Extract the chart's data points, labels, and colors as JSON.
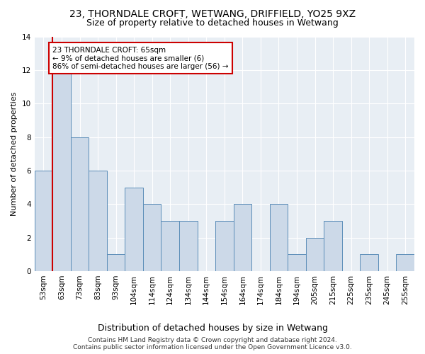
{
  "title": "23, THORNDALE CROFT, WETWANG, DRIFFIELD, YO25 9XZ",
  "subtitle": "Size of property relative to detached houses in Wetwang",
  "xlabel": "Distribution of detached houses by size in Wetwang",
  "ylabel": "Number of detached properties",
  "categories": [
    "53sqm",
    "63sqm",
    "73sqm",
    "83sqm",
    "93sqm",
    "104sqm",
    "114sqm",
    "124sqm",
    "134sqm",
    "144sqm",
    "154sqm",
    "164sqm",
    "174sqm",
    "184sqm",
    "194sqm",
    "205sqm",
    "215sqm",
    "225sqm",
    "235sqm",
    "245sqm",
    "255sqm"
  ],
  "values": [
    6,
    12,
    8,
    6,
    1,
    5,
    4,
    3,
    3,
    0,
    3,
    4,
    0,
    4,
    1,
    2,
    3,
    0,
    1,
    0,
    1
  ],
  "bar_color": "#ccd9e8",
  "bar_edge_color": "#5b8db8",
  "vline_x_index": 1,
  "vline_color": "#cc0000",
  "annotation_line1": "23 THORNDALE CROFT: 65sqm",
  "annotation_line2": "← 9% of detached houses are smaller (6)",
  "annotation_line3": "86% of semi-detached houses are larger (56) →",
  "annotation_box_color": "#ffffff",
  "annotation_box_edge": "#cc0000",
  "ylim": [
    0,
    14
  ],
  "yticks": [
    0,
    2,
    4,
    6,
    8,
    10,
    12,
    14
  ],
  "bg_color": "#e8eef4",
  "grid_color": "#ffffff",
  "footer": "Contains HM Land Registry data © Crown copyright and database right 2024.\nContains public sector information licensed under the Open Government Licence v3.0.",
  "title_fontsize": 10,
  "subtitle_fontsize": 9,
  "ylabel_fontsize": 8,
  "xlabel_fontsize": 9,
  "tick_fontsize": 7.5,
  "annotation_fontsize": 7.5,
  "footer_fontsize": 6.5
}
